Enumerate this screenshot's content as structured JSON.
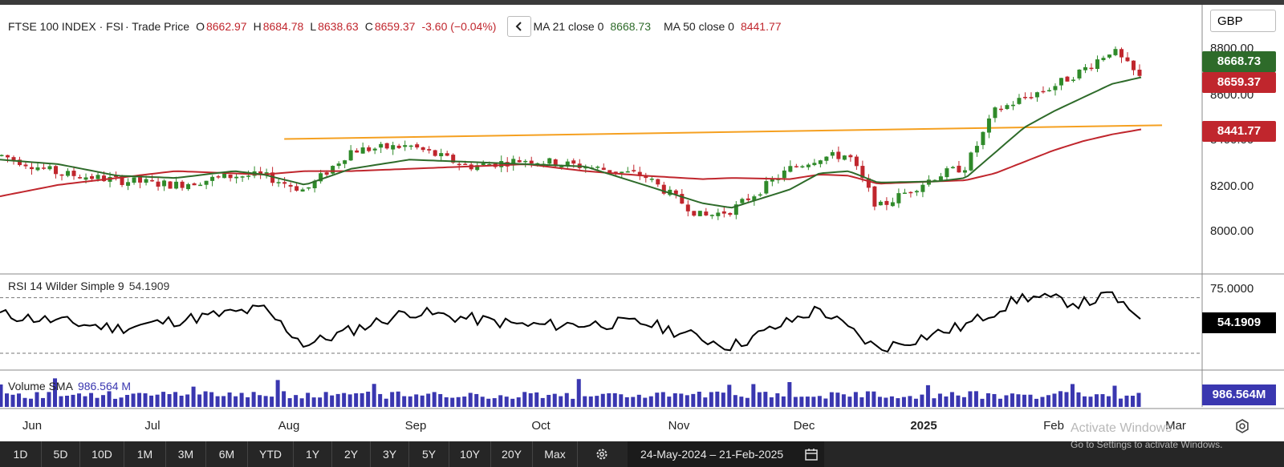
{
  "header": {
    "symbol": "FTSE 100 INDEX · FSI",
    "mode": "· Trade Price",
    "o_prefix": "O",
    "o": "8662.97",
    "h_prefix": "H",
    "h": "8684.78",
    "l_prefix": "L",
    "l": "8638.63",
    "c_prefix": "C",
    "c": "8659.37",
    "change": "-3.60 (−0.04%)",
    "collapse_icon": "chevron-left-icon",
    "ma21_label": "MA 21 close 0",
    "ma21_value": "8668.73",
    "ma50_label": "MA 50 close 0",
    "ma50_value": "8441.77"
  },
  "currency": "GBP",
  "price_axis": {
    "ticks": [
      "8800.00",
      "8600.00",
      "8400.00",
      "8200.00",
      "8000.00"
    ]
  },
  "tags": {
    "ma21": "8668.73",
    "last": "8659.37",
    "ma50": "8441.77"
  },
  "rsi": {
    "label": "RSI 14 Wilder Simple 9",
    "value": "54.1909",
    "top_tick": "75.0000",
    "tag": "54.1909"
  },
  "volume": {
    "label": "Volume SMA",
    "value": "986.564 M",
    "tag": "986.564M"
  },
  "time_axis": [
    "Jun",
    "Jul",
    "Aug",
    "Sep",
    "Oct",
    "Nov",
    "Dec",
    "2025",
    "Feb",
    "Mar"
  ],
  "ranges": [
    "1D",
    "5D",
    "10D",
    "1M",
    "3M",
    "6M",
    "YTD",
    "1Y",
    "2Y",
    "3Y",
    "5Y",
    "10Y",
    "20Y",
    "Max"
  ],
  "date_range": "24-May-2024  –  21-Feb-2025",
  "watermark": {
    "line1": "Activate Windows",
    "line2": "Go to Settings to activate Windows."
  },
  "colors": {
    "up": "#2f8a2a",
    "down": "#c0262d",
    "ma21": "#2e6b2a",
    "ma50": "#c0262d",
    "trend": "#f5a020",
    "volume": "#3a37b0"
  },
  "chart_data": [
    {
      "type": "line",
      "title": "FTSE 100 INDEX · FSI",
      "xlabel": "",
      "ylabel": "",
      "x": [
        "2024-05-24",
        "2024-06-07",
        "2024-06-21",
        "2024-07-05",
        "2024-07-19",
        "2024-07-26",
        "2024-08-05",
        "2024-08-16",
        "2024-08-30",
        "2024-09-13",
        "2024-09-27",
        "2024-10-11",
        "2024-10-25",
        "2024-11-08",
        "2024-11-15",
        "2024-11-29",
        "2024-12-06",
        "2024-12-13",
        "2024-12-20",
        "2025-01-03",
        "2025-01-10",
        "2025-01-17",
        "2025-01-24",
        "2025-01-31",
        "2025-02-07",
        "2025-02-14",
        "2025-02-21"
      ],
      "series": [
        {
          "name": "Trade Price",
          "values": [
            8330,
            8250,
            8220,
            8200,
            8240,
            8240,
            8175,
            8350,
            8370,
            8280,
            8310,
            8280,
            8240,
            8060,
            8090,
            8270,
            8320,
            8330,
            8100,
            8240,
            8280,
            8520,
            8580,
            8630,
            8700,
            8790,
            8659
          ]
        },
        {
          "name": "MA 21 close 0",
          "values": [
            8310,
            8290,
            8240,
            8230,
            8260,
            8245,
            8200,
            8270,
            8310,
            8300,
            8290,
            8280,
            8200,
            8120,
            8100,
            8180,
            8250,
            8260,
            8210,
            8215,
            8230,
            8340,
            8450,
            8520,
            8580,
            8640,
            8669
          ]
        },
        {
          "name": "MA 50 close 0",
          "values": [
            8150,
            8200,
            8230,
            8260,
            8250,
            8245,
            8260,
            8260,
            8270,
            8280,
            8290,
            8260,
            8240,
            8225,
            8230,
            8225,
            8245,
            8240,
            8205,
            8215,
            8220,
            8250,
            8300,
            8350,
            8390,
            8420,
            8442
          ]
        }
      ],
      "trendline": {
        "from": {
          "x": "2024-07-31",
          "y": 8400
        },
        "to": {
          "x": "2025-02-26",
          "y": 8460
        }
      },
      "ylim": [
        7900,
        8850
      ],
      "grid": false
    },
    {
      "type": "line",
      "title": "RSI 14 Wilder Simple 9",
      "x": [
        "2024-05-24",
        "2024-06-21",
        "2024-07-26",
        "2024-08-05",
        "2024-08-30",
        "2024-09-27",
        "2024-10-25",
        "2024-11-15",
        "2024-12-06",
        "2024-12-20",
        "2025-01-10",
        "2025-01-24",
        "2025-02-07",
        "2025-02-14",
        "2025-02-21"
      ],
      "series": [
        {
          "name": "RSI 14 Wilder Simple 9",
          "values": [
            58,
            48,
            62,
            36,
            60,
            50,
            52,
            35,
            62,
            33,
            50,
            71,
            66,
            72,
            54.19
          ]
        }
      ],
      "ylim": [
        30,
        80
      ],
      "reference_lines": [
        70,
        30
      ]
    },
    {
      "type": "bar",
      "title": "Volume SMA",
      "series": [
        {
          "name": "Volume SMA",
          "values": [
            986.564
          ]
        }
      ]
    }
  ]
}
